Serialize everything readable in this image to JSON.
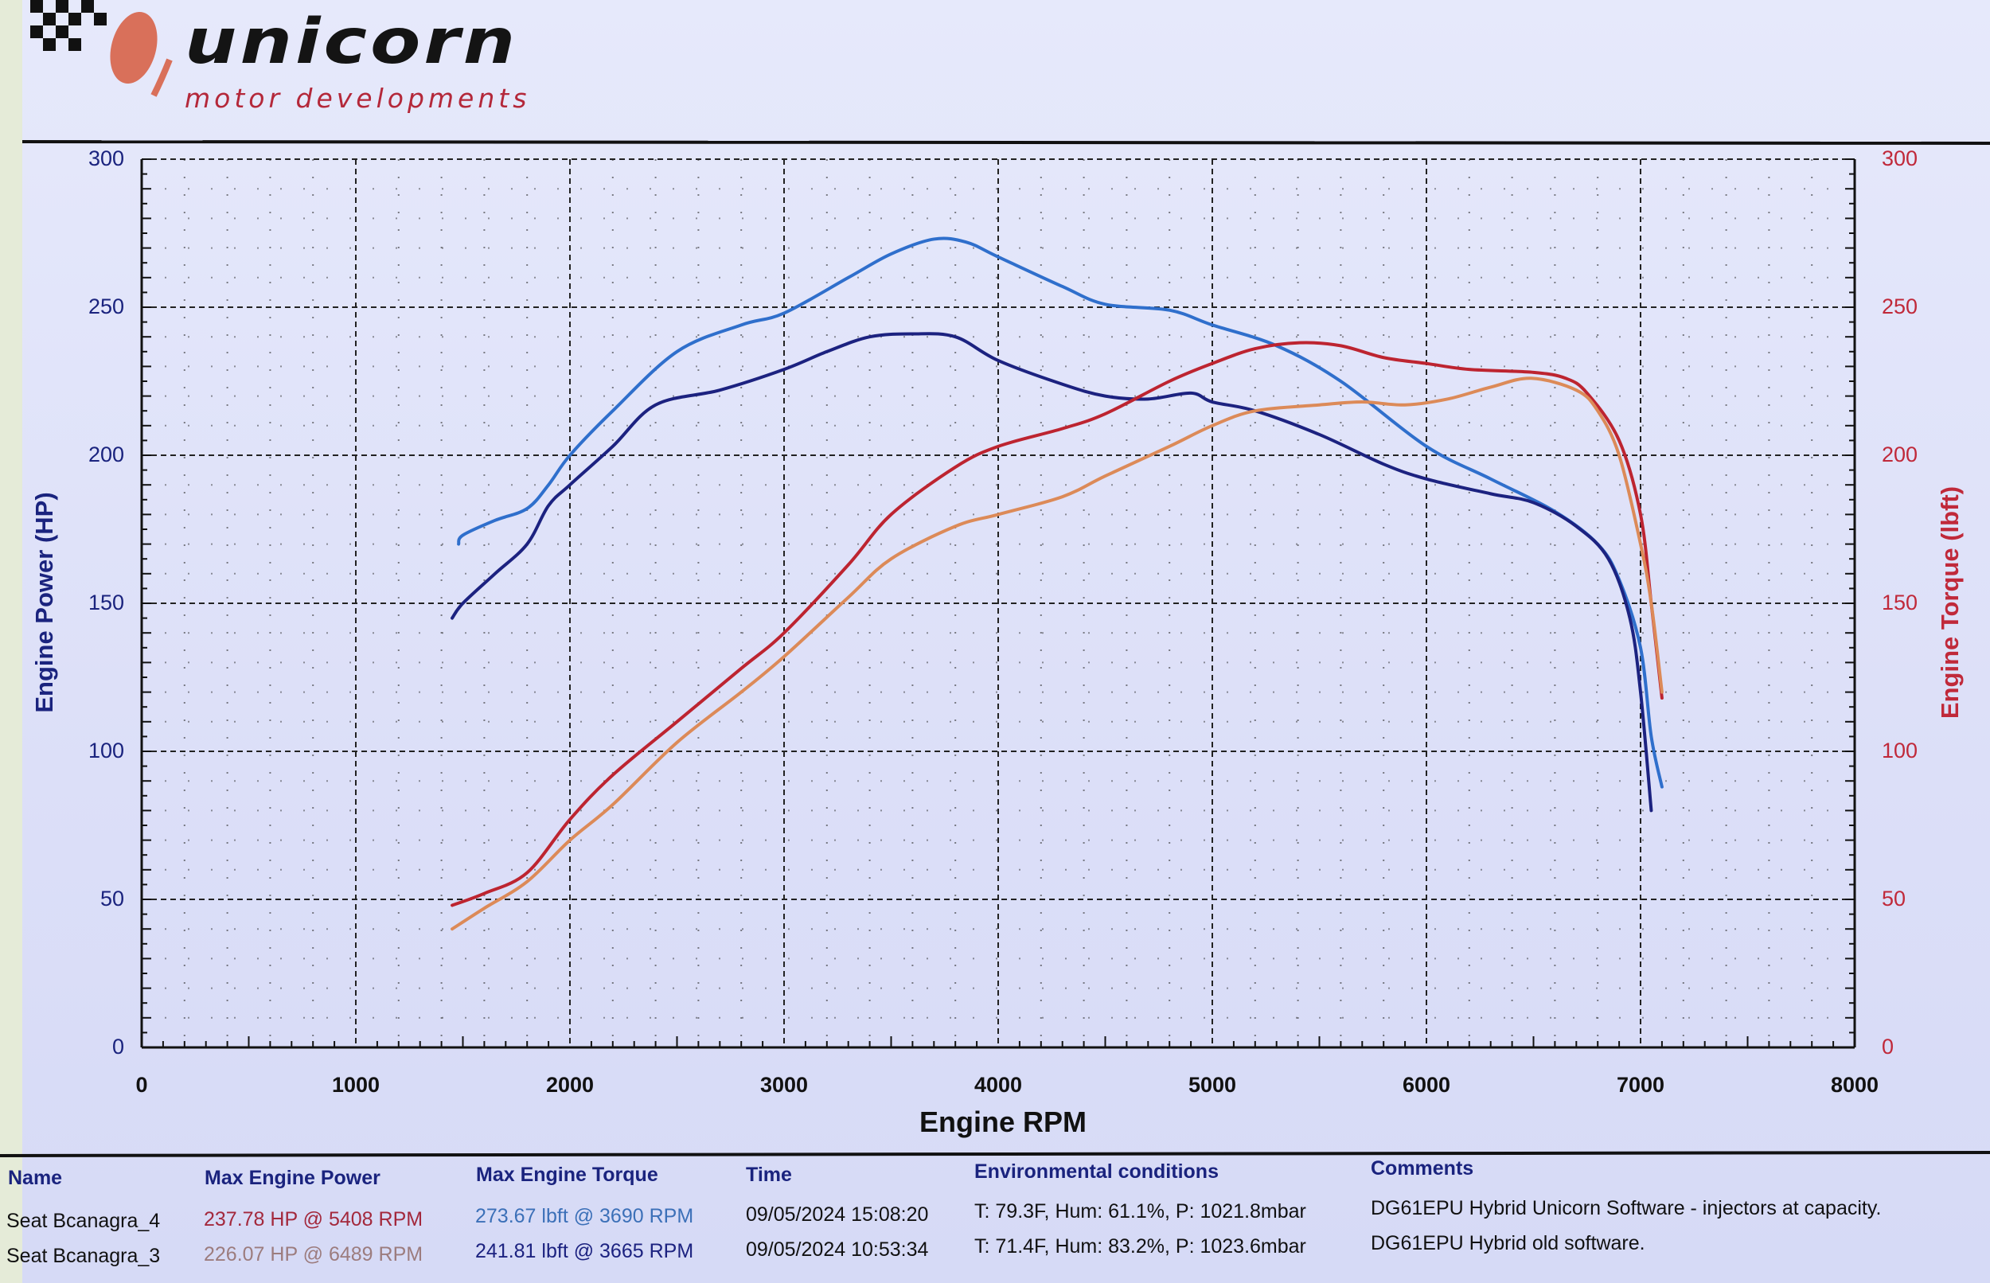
{
  "logo": {
    "name": "unicorn",
    "tagline": "motor developments"
  },
  "chart_data": {
    "type": "line",
    "xlabel": "Engine RPM",
    "ylabel_left": "Engine Power (HP)",
    "ylabel_right": "Engine Torque (lbft)",
    "xlim": [
      0,
      8000
    ],
    "ylim_left": [
      0,
      300
    ],
    "ylim_right": [
      0,
      300
    ],
    "x_ticks": [
      "0",
      "1000",
      "2000",
      "3000",
      "4000",
      "5000",
      "6000",
      "7000",
      "8000"
    ],
    "y_ticks_left": [
      "0",
      "50",
      "100",
      "150",
      "200",
      "250",
      "300"
    ],
    "y_ticks_right": [
      "0",
      "50",
      "100",
      "150",
      "200",
      "250",
      "300"
    ],
    "grid": true,
    "series": [
      {
        "name": "Seat Bcanagra_4 torque",
        "color": "#2f6fcc",
        "x": [
          1480,
          1500,
          1650,
          1800,
          1900,
          2000,
          2200,
          2500,
          2800,
          3000,
          3300,
          3500,
          3700,
          3850,
          4000,
          4300,
          4500,
          4800,
          5000,
          5300,
          5600,
          6000,
          6300,
          6600,
          6800,
          6900,
          7000,
          7050,
          7100
        ],
        "y": [
          170,
          173,
          178,
          182,
          190,
          200,
          215,
          235,
          244,
          248,
          260,
          268,
          273,
          272,
          267,
          257,
          251,
          249,
          244,
          237,
          225,
          203,
          192,
          181,
          170,
          158,
          135,
          105,
          88
        ]
      },
      {
        "name": "Seat Bcanagra_3 torque",
        "color": "#1c2280",
        "x": [
          1450,
          1500,
          1650,
          1800,
          1900,
          2000,
          2200,
          2400,
          2700,
          3000,
          3200,
          3400,
          3600,
          3800,
          4000,
          4300,
          4500,
          4700,
          4900,
          5000,
          5200,
          5500,
          5800,
          6000,
          6300,
          6500,
          6700,
          6850,
          6950,
          7000,
          7050
        ],
        "y": [
          145,
          150,
          160,
          170,
          183,
          190,
          203,
          217,
          222,
          229,
          235,
          240,
          241,
          240,
          232,
          224,
          220,
          219,
          221,
          218,
          215,
          207,
          197,
          192,
          187,
          184,
          176,
          165,
          145,
          120,
          80
        ]
      },
      {
        "name": "Seat Bcanagra_4 power",
        "color": "#bd2430",
        "x": [
          1450,
          1600,
          1800,
          2000,
          2200,
          2500,
          2800,
          3000,
          3300,
          3500,
          3800,
          4000,
          4300,
          4500,
          4800,
          5000,
          5200,
          5408,
          5600,
          5800,
          6000,
          6200,
          6500,
          6650,
          6750,
          6900,
          7000,
          7050,
          7100
        ],
        "y": [
          48,
          52,
          59,
          77,
          92,
          110,
          128,
          140,
          163,
          180,
          196,
          203,
          209,
          214,
          225,
          231,
          236,
          238,
          237,
          233,
          231,
          229,
          228,
          226,
          221,
          205,
          180,
          150,
          118
        ]
      },
      {
        "name": "Seat Bcanagra_3 power",
        "color": "#dc8a58",
        "x": [
          1450,
          1600,
          1800,
          2000,
          2200,
          2500,
          2800,
          3000,
          3300,
          3500,
          3800,
          4000,
          4300,
          4500,
          4800,
          5000,
          5200,
          5500,
          5700,
          5900,
          6100,
          6300,
          6489,
          6700,
          6800,
          6900,
          7000,
          7050,
          7100
        ],
        "y": [
          40,
          47,
          56,
          70,
          82,
          103,
          120,
          132,
          152,
          165,
          176,
          180,
          186,
          193,
          203,
          210,
          215,
          217,
          218,
          217,
          219,
          223,
          226,
          222,
          215,
          200,
          170,
          150,
          120
        ]
      }
    ]
  },
  "table": {
    "headers": [
      "Name",
      "Max Engine Power",
      "Max Engine Torque",
      "Time",
      "Environmental conditions",
      "Comments"
    ],
    "rows": [
      {
        "name": "Seat Bcanagra_4",
        "power": "237.78 HP @ 5408 RPM",
        "torque": "273.67 lbft @ 3690 RPM",
        "time": "09/05/2024 15:08:20",
        "env": "T: 79.3F, Hum: 61.1%, P: 1021.8mbar",
        "comment": "DG61EPU Hybrid Unicorn Software - injectors at capacity.",
        "power_color": "#a3283c",
        "torque_color": "#3c70b8"
      },
      {
        "name": "Seat Bcanagra_3",
        "power": "226.07 HP @ 6489 RPM",
        "torque": "241.81 lbft @ 3665 RPM",
        "time": "09/05/2024 10:53:34",
        "env": "T: 71.4F, Hum: 83.2%, P: 1023.6mbar",
        "comment": "DG61EPU Hybrid old software.",
        "power_color": "#9c7c7e",
        "torque_color": "#1c2280"
      }
    ]
  }
}
